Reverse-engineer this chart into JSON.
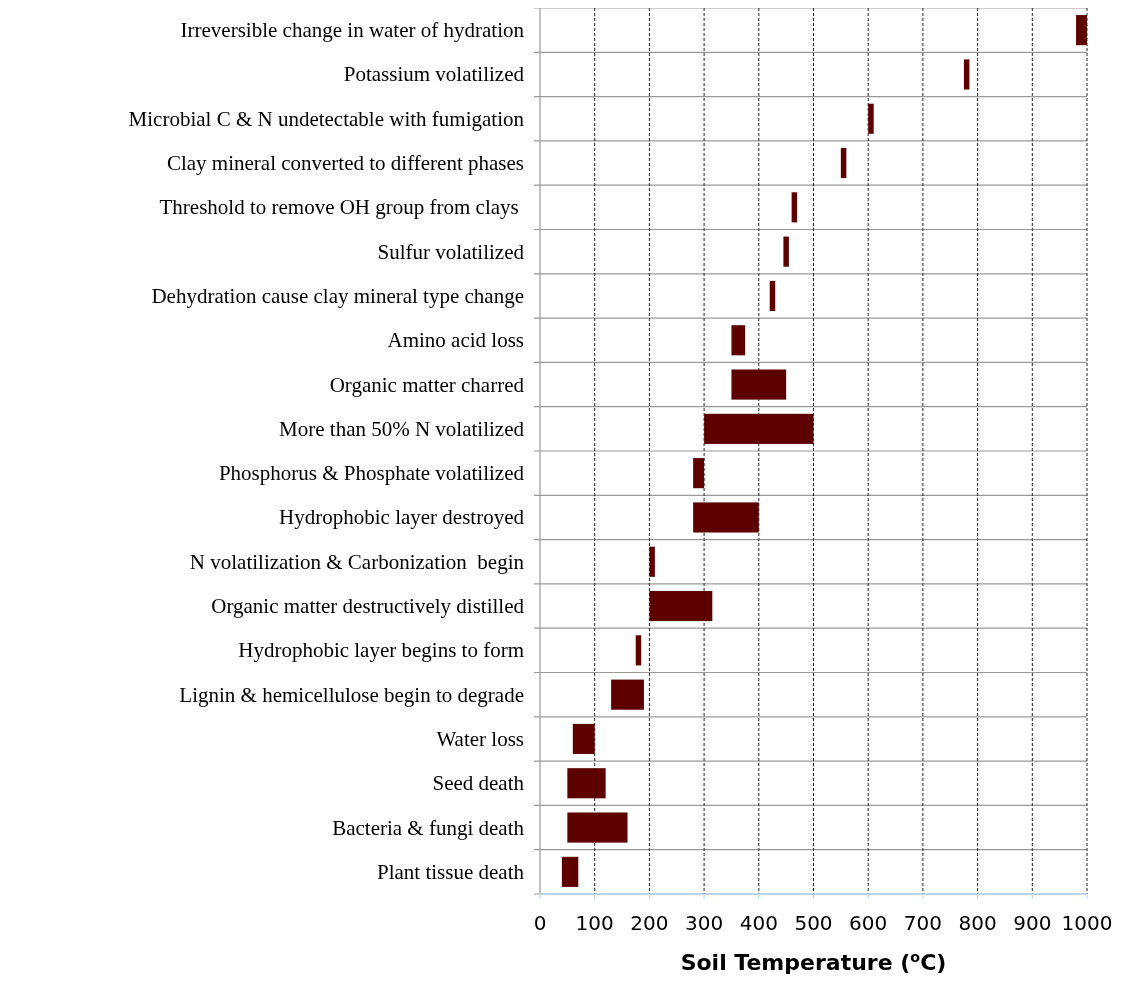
{
  "chart_data": {
    "type": "bar",
    "orientation": "horizontal",
    "xlabel": "Soil Temperature ($^{o}$C)",
    "categories": [
      "Irreversible change in water of hydration",
      "Potassium volatilized",
      "Microbial C & N undetectable with fumigation",
      "Clay mineral converted to different phases",
      "Threshold to remove OH group from clays ",
      "Sulfur volatilized",
      "Dehydration cause clay mineral type change",
      "Amino acid loss",
      "Organic matter charred",
      "More than 50% N volatilized",
      "Phosphorus & Phosphate volatilized",
      "Hydrophobic layer destroyed",
      "N volatilization & Carbonization  begin",
      "Organic matter destructively distilled",
      "Hydrophobic layer begins to form",
      "Lignin & hemicellulose begin to degrade",
      "Water loss",
      "Seed death",
      "Bacteria & fungi death",
      "Plant tissue death"
    ],
    "base": [
      980,
      775,
      600,
      550,
      460,
      445,
      420,
      350,
      350,
      300,
      280,
      280,
      200,
      200,
      175,
      130,
      60,
      50,
      50,
      40
    ],
    "values": [
      20,
      10,
      10,
      10,
      10,
      10,
      10,
      25,
      100,
      200,
      20,
      120,
      10,
      115,
      10,
      60,
      40,
      70,
      110,
      30
    ],
    "color": "#5c0000",
    "xlim": [
      0,
      1000
    ],
    "xticks": [
      0,
      100,
      200,
      300,
      400,
      500,
      600,
      700,
      800,
      900,
      1000
    ],
    "grid": true
  }
}
